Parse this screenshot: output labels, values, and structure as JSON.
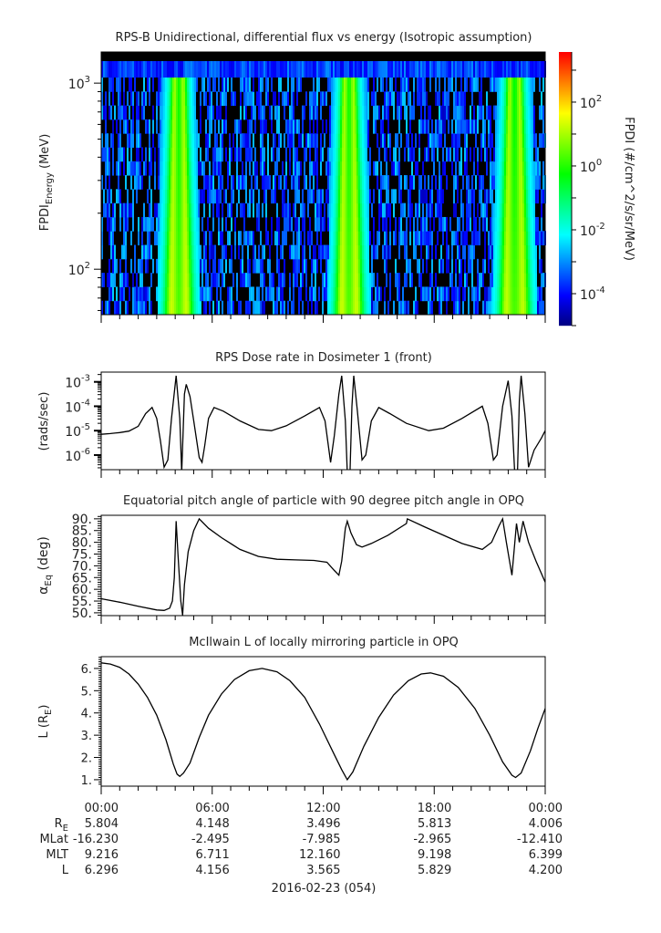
{
  "time_axis": {
    "unit": "hours",
    "range": [
      0,
      24
    ],
    "tick_labels": [
      "00:00",
      "06:00",
      "12:00",
      "18:00",
      "00:00"
    ],
    "date_label": "2016-02-23 (054)"
  },
  "ephemeris": {
    "rows": [
      {
        "label": "R",
        "label_sub": "E",
        "values": [
          "5.804",
          "4.148",
          "3.496",
          "5.813",
          "4.006"
        ]
      },
      {
        "label": "MLat",
        "label_sub": "",
        "values": [
          "-16.230",
          "-2.495",
          "-7.985",
          "-2.965",
          "-12.410"
        ]
      },
      {
        "label": "MLT",
        "label_sub": "",
        "values": [
          "9.216",
          "6.711",
          "12.160",
          "9.198",
          "6.399"
        ]
      },
      {
        "label": "L",
        "label_sub": "",
        "values": [
          "6.296",
          "4.156",
          "3.565",
          "5.829",
          "4.200"
        ]
      }
    ]
  },
  "chart_data": [
    {
      "type": "heatmap",
      "title": "RPS-B  Unidirectional, differential flux vs energy (Isotropic assumption)",
      "ylabel": {
        "main": "FPDI",
        "sub": "Energy",
        "tail": " (MeV)"
      },
      "yscale": "log",
      "ylim": [
        57,
        1470
      ],
      "ytick_labels": [
        {
          "base": "10",
          "exp": "2",
          "value": 100
        },
        {
          "base": "10",
          "exp": "3",
          "value": 1000
        }
      ],
      "colorbar": {
        "label": "FPDI (#/cm^2/s/sr/MeV)",
        "scale": "log",
        "range_exp": [
          -5,
          3.57
        ],
        "tick_labels": [
          {
            "base": "10",
            "exp": "-4",
            "value": -4
          },
          {
            "base": "10",
            "exp": "-2",
            "value": -2
          },
          {
            "base": "10",
            "exp": "0",
            "value": 0
          },
          {
            "base": "10",
            "exp": "2",
            "value": 2
          }
        ],
        "colors": [
          "#00007f",
          "#0000ff",
          "#0080ff",
          "#00ffff",
          "#00ff80",
          "#00ff00",
          "#80ff00",
          "#ffff00",
          "#ff8000",
          "#ff0000"
        ]
      },
      "enhancement_passes_hours": [
        [
          3.7,
          4.6
        ],
        [
          12.9,
          13.8
        ],
        [
          21.8,
          22.8
        ]
      ],
      "background_flux_exp": [
        -4.5,
        -2.5
      ]
    },
    {
      "type": "line",
      "title": "RPS  Dose rate in Dosimeter 1 (front)",
      "ylabel": "(rads/sec)",
      "yscale": "log",
      "ylim_exp": [
        -6.6,
        -2.6
      ],
      "ytick_labels": [
        {
          "base": "10",
          "exp": "-6",
          "value": -6
        },
        {
          "base": "10",
          "exp": "-5",
          "value": -5
        },
        {
          "base": "10",
          "exp": "-4",
          "value": -4
        },
        {
          "base": "10",
          "exp": "-3",
          "value": -3
        }
      ],
      "points_log10": [
        [
          0,
          -5.15
        ],
        [
          0.5,
          -5.12
        ],
        [
          1,
          -5.08
        ],
        [
          1.5,
          -5.02
        ],
        [
          2,
          -4.82
        ],
        [
          2.4,
          -4.3
        ],
        [
          2.75,
          -4.05
        ],
        [
          3.0,
          -4.5
        ],
        [
          3.2,
          -5.4
        ],
        [
          3.4,
          -6.5
        ],
        [
          3.6,
          -6.2
        ],
        [
          3.8,
          -4.5
        ],
        [
          4.05,
          -2.75
        ],
        [
          4.25,
          -4.5
        ],
        [
          4.35,
          -6.7
        ],
        [
          4.5,
          -3.5
        ],
        [
          4.6,
          -3.1
        ],
        [
          4.8,
          -3.6
        ],
        [
          5.0,
          -4.6
        ],
        [
          5.3,
          -6.1
        ],
        [
          5.45,
          -6.3
        ],
        [
          5.6,
          -5.6
        ],
        [
          5.8,
          -4.5
        ],
        [
          6.1,
          -4.05
        ],
        [
          6.6,
          -4.2
        ],
        [
          7.5,
          -4.6
        ],
        [
          8.5,
          -4.95
        ],
        [
          9.2,
          -5.0
        ],
        [
          10,
          -4.8
        ],
        [
          11,
          -4.4
        ],
        [
          11.8,
          -4.05
        ],
        [
          12.1,
          -4.6
        ],
        [
          12.4,
          -6.3
        ],
        [
          12.6,
          -5.2
        ],
        [
          12.85,
          -3.5
        ],
        [
          13.0,
          -2.75
        ],
        [
          13.2,
          -4.6
        ],
        [
          13.3,
          -6.7
        ],
        [
          13.45,
          -6.7
        ],
        [
          13.55,
          -4.0
        ],
        [
          13.65,
          -2.75
        ],
        [
          13.85,
          -4.2
        ],
        [
          14.1,
          -6.2
        ],
        [
          14.3,
          -6.0
        ],
        [
          14.6,
          -4.6
        ],
        [
          15.0,
          -4.05
        ],
        [
          15.6,
          -4.3
        ],
        [
          16.5,
          -4.7
        ],
        [
          17.7,
          -5.0
        ],
        [
          18.5,
          -4.9
        ],
        [
          19.5,
          -4.5
        ],
        [
          20.6,
          -4.0
        ],
        [
          20.9,
          -4.7
        ],
        [
          21.2,
          -6.2
        ],
        [
          21.4,
          -6.0
        ],
        [
          21.7,
          -4.0
        ],
        [
          22.0,
          -2.95
        ],
        [
          22.2,
          -4.4
        ],
        [
          22.35,
          -6.7
        ],
        [
          22.5,
          -6.7
        ],
        [
          22.6,
          -3.8
        ],
        [
          22.7,
          -2.75
        ],
        [
          22.9,
          -4.3
        ],
        [
          23.1,
          -6.5
        ],
        [
          23.4,
          -5.8
        ],
        [
          23.8,
          -5.3
        ],
        [
          24,
          -5.0
        ]
      ]
    },
    {
      "type": "line",
      "title": "Equatorial pitch angle of particle with 90 degree pitch angle in OPQ",
      "ylabel": {
        "main": "α",
        "sub": "Eq",
        "tail": " (deg)"
      },
      "ylim": [
        48.8,
        91.5
      ],
      "ytick_labels": [
        "50.",
        "55.",
        "60.",
        "65.",
        "70.",
        "75.",
        "80.",
        "85.",
        "90."
      ],
      "ytick_values": [
        50,
        55,
        60,
        65,
        70,
        75,
        80,
        85,
        90
      ],
      "points": [
        [
          0,
          56
        ],
        [
          1,
          54.5
        ],
        [
          2,
          52.8
        ],
        [
          3,
          51.2
        ],
        [
          3.4,
          51
        ],
        [
          3.7,
          52
        ],
        [
          3.85,
          55
        ],
        [
          3.95,
          65
        ],
        [
          4.05,
          89
        ],
        [
          4.15,
          75
        ],
        [
          4.3,
          55
        ],
        [
          4.4,
          49
        ],
        [
          4.5,
          62
        ],
        [
          4.7,
          76
        ],
        [
          5.0,
          85
        ],
        [
          5.3,
          90
        ],
        [
          5.8,
          86
        ],
        [
          6.5,
          82
        ],
        [
          7.5,
          77
        ],
        [
          8.5,
          74
        ],
        [
          9.5,
          72.8
        ],
        [
          10.5,
          72.5
        ],
        [
          11.5,
          72.3
        ],
        [
          12.2,
          71.5
        ],
        [
          12.6,
          68
        ],
        [
          12.85,
          66
        ],
        [
          13.0,
          72
        ],
        [
          13.2,
          86
        ],
        [
          13.3,
          89
        ],
        [
          13.5,
          84
        ],
        [
          13.8,
          79
        ],
        [
          14.1,
          78
        ],
        [
          14.6,
          79.5
        ],
        [
          15.5,
          83
        ],
        [
          16.5,
          88
        ],
        [
          16.55,
          90
        ],
        [
          17.5,
          86.5
        ],
        [
          18.5,
          83
        ],
        [
          19.5,
          79.5
        ],
        [
          20.6,
          77
        ],
        [
          21.1,
          80
        ],
        [
          21.5,
          87
        ],
        [
          21.7,
          90
        ],
        [
          21.9,
          80
        ],
        [
          22.2,
          66
        ],
        [
          22.45,
          88
        ],
        [
          22.6,
          80
        ],
        [
          22.8,
          89
        ],
        [
          23.1,
          80
        ],
        [
          23.5,
          72
        ],
        [
          24,
          63
        ]
      ]
    },
    {
      "type": "line",
      "title": "McIlwain L of locally mirroring particle in OPQ",
      "ylabel": {
        "main": "L (R",
        "sub": "E",
        "tail": ")"
      },
      "ylim": [
        0.71,
        6.53
      ],
      "ytick_labels": [
        "1.",
        "2.",
        "3.",
        "4.",
        "5.",
        "6."
      ],
      "ytick_values": [
        1,
        2,
        3,
        4,
        5,
        6
      ],
      "points": [
        [
          0,
          6.25
        ],
        [
          0.5,
          6.2
        ],
        [
          1,
          6.05
        ],
        [
          1.5,
          5.75
        ],
        [
          2,
          5.3
        ],
        [
          2.5,
          4.7
        ],
        [
          3,
          3.9
        ],
        [
          3.5,
          2.8
        ],
        [
          3.9,
          1.7
        ],
        [
          4.1,
          1.25
        ],
        [
          4.25,
          1.15
        ],
        [
          4.45,
          1.3
        ],
        [
          4.8,
          1.75
        ],
        [
          5.3,
          2.9
        ],
        [
          5.8,
          3.9
        ],
        [
          6.5,
          4.85
        ],
        [
          7.2,
          5.5
        ],
        [
          8,
          5.9
        ],
        [
          8.7,
          6.0
        ],
        [
          9.5,
          5.85
        ],
        [
          10.2,
          5.45
        ],
        [
          11,
          4.7
        ],
        [
          11.8,
          3.5
        ],
        [
          12.5,
          2.3
        ],
        [
          13.0,
          1.45
        ],
        [
          13.3,
          1.0
        ],
        [
          13.6,
          1.35
        ],
        [
          14.2,
          2.5
        ],
        [
          15,
          3.8
        ],
        [
          15.8,
          4.8
        ],
        [
          16.6,
          5.45
        ],
        [
          17.3,
          5.75
        ],
        [
          17.8,
          5.8
        ],
        [
          18.5,
          5.65
        ],
        [
          19.3,
          5.15
        ],
        [
          20.2,
          4.2
        ],
        [
          21,
          3.0
        ],
        [
          21.7,
          1.8
        ],
        [
          22.2,
          1.2
        ],
        [
          22.4,
          1.1
        ],
        [
          22.7,
          1.3
        ],
        [
          23.2,
          2.3
        ],
        [
          23.6,
          3.3
        ],
        [
          24,
          4.2
        ]
      ]
    }
  ]
}
